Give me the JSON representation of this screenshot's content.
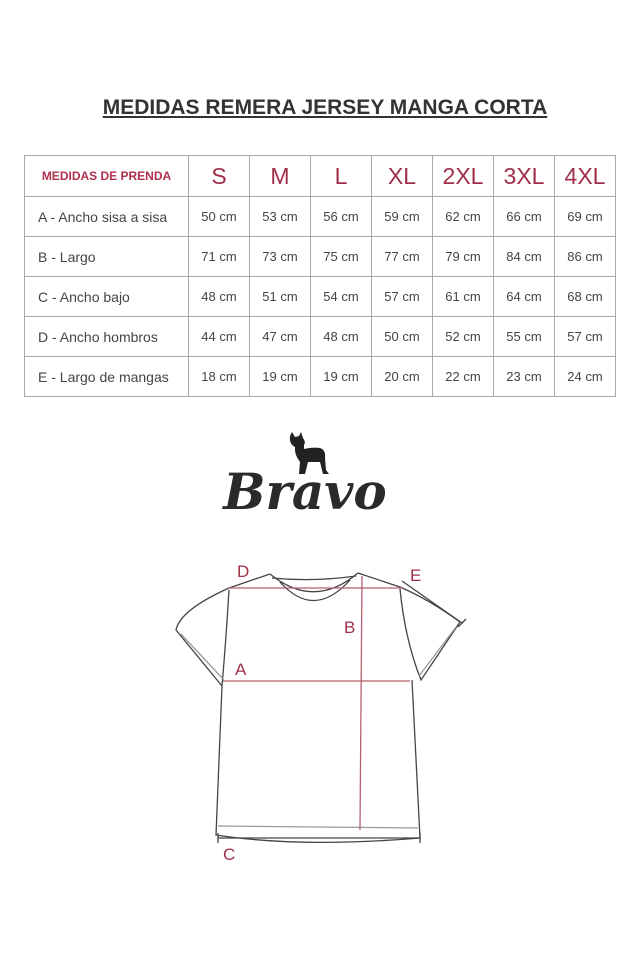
{
  "title": "MEDIDAS REMERA JERSEY MANGA CORTA",
  "table": {
    "header": [
      "MEDIDAS DE PRENDA",
      "S",
      "M",
      "L",
      "XL",
      "2XL",
      "3XL",
      "4XL"
    ],
    "rows": [
      {
        "label": "A - Ancho sisa a sisa",
        "values": [
          "50 cm",
          "53 cm",
          "56 cm",
          "59 cm",
          "62 cm",
          "66 cm",
          "69 cm"
        ]
      },
      {
        "label": "B - Largo",
        "values": [
          "71 cm",
          "73 cm",
          "75 cm",
          "77 cm",
          "79 cm",
          "84 cm",
          "86 cm"
        ]
      },
      {
        "label": "C - Ancho bajo",
        "values": [
          "48 cm",
          "51 cm",
          "54 cm",
          "57 cm",
          "61 cm",
          "64 cm",
          "68 cm"
        ]
      },
      {
        "label": "D - Ancho hombros",
        "values": [
          "44 cm",
          "47 cm",
          "48 cm",
          "50 cm",
          "52 cm",
          "55 cm",
          "57 cm"
        ]
      },
      {
        "label": "E - Largo de mangas",
        "values": [
          "18 cm",
          "19 cm",
          "19 cm",
          "20 cm",
          "22 cm",
          "23 cm",
          "24 cm"
        ]
      }
    ]
  },
  "logo": {
    "text": "Bravo",
    "icon": "bulldog-icon"
  },
  "diagram": {
    "labels": {
      "a": "A",
      "b": "B",
      "c": "C",
      "d": "D",
      "e": "E"
    }
  },
  "colors": {
    "accent": "#a0304a",
    "measure_line": "#b5606e"
  }
}
